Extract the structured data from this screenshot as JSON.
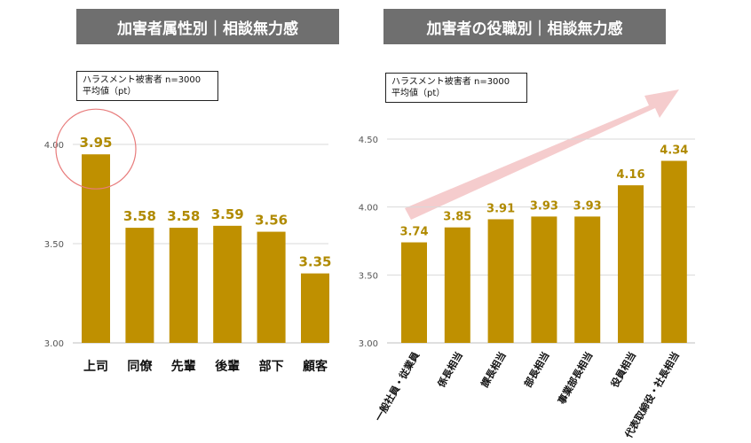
{
  "chart_data": [
    {
      "type": "bar",
      "title": "加害者属性別｜相談無力感",
      "note": [
        "ハラスメント被害者  n=3000",
        "平均値（pt）"
      ],
      "ylim": [
        3.0,
        4.0
      ],
      "yticks": [
        "3.00",
        "3.50",
        "4.00"
      ],
      "categories": [
        "上司",
        "同僚",
        "先輩",
        "後輩",
        "部下",
        "顧客"
      ],
      "values": [
        3.95,
        3.58,
        3.58,
        3.59,
        3.56,
        3.35
      ],
      "value_labels": [
        "3.95",
        "3.58",
        "3.58",
        "3.59",
        "3.56",
        "3.35"
      ],
      "highlight": "上司",
      "grid": true
    },
    {
      "type": "bar",
      "title": "加害者の役職別｜相談無力感",
      "note": [
        "ハラスメント被害者  n=3000",
        "平均値（pt）"
      ],
      "ylim": [
        3.0,
        4.5
      ],
      "yticks": [
        "3.00",
        "3.50",
        "4.00",
        "4.50"
      ],
      "categories": [
        "一般社員・従業員",
        "係長相当",
        "課長相当",
        "部長相当",
        "事業部長相当",
        "役員相当",
        "代表取締役・社長相当"
      ],
      "values": [
        3.74,
        3.85,
        3.91,
        3.93,
        3.93,
        4.16,
        4.34
      ],
      "value_labels": [
        "3.74",
        "3.85",
        "3.91",
        "3.93",
        "3.93",
        "4.16",
        "4.34"
      ],
      "trend_arrow": true,
      "grid": true
    }
  ],
  "colors": {
    "bar": "#bf9000",
    "label": "#b08a00",
    "title_bg": "#6f6f6f",
    "highlight": "#e87c7c",
    "arrow": "#f4c6c8"
  }
}
